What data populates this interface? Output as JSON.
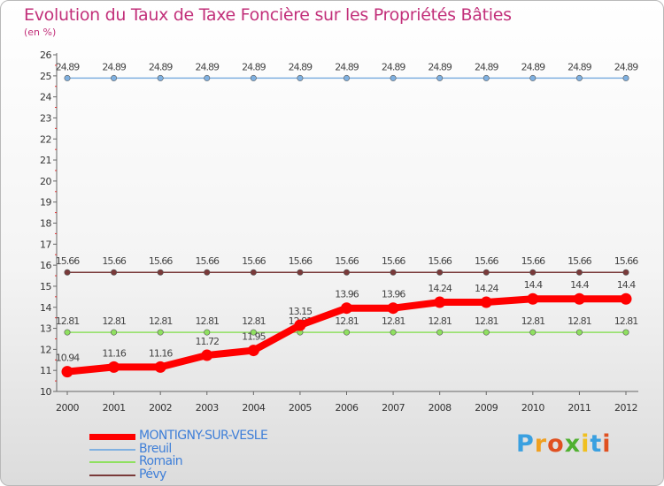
{
  "chart_data": {
    "type": "line",
    "title": "Evolution du Taux de Taxe Foncière sur les Propriétés Bâties",
    "subtitle": "(en %)",
    "xlabel": "",
    "ylabel": "",
    "ylim": [
      10,
      26
    ],
    "yticks": [
      "10",
      "11",
      "12",
      "13",
      "14",
      "15",
      "16",
      "17",
      "18",
      "19",
      "20",
      "21",
      "22",
      "23",
      "24",
      "25",
      "26"
    ],
    "categories": [
      "2000",
      "2001",
      "2002",
      "2003",
      "2004",
      "2005",
      "2006",
      "2007",
      "2008",
      "2009",
      "2010",
      "2011",
      "2012"
    ],
    "grid": false,
    "legend_position": "bottom-left",
    "series": [
      {
        "name": "MONTIGNY-SUR-VESLE",
        "color": "#ff0000",
        "values": [
          10.94,
          11.16,
          11.16,
          11.72,
          11.95,
          13.15,
          13.96,
          13.96,
          14.24,
          14.24,
          14.4,
          14.4,
          14.4
        ],
        "labels": [
          "10.94",
          "11.16",
          "11.16",
          "11.72",
          "11.95",
          "13.15",
          "13.96",
          "13.96",
          "14.24",
          "14.24",
          "14.4",
          "14.4",
          "14.4"
        ]
      },
      {
        "name": "Breuil",
        "color": "#7fb0e0",
        "values": [
          24.89,
          24.89,
          24.89,
          24.89,
          24.89,
          24.89,
          24.89,
          24.89,
          24.89,
          24.89,
          24.89,
          24.89,
          24.89
        ],
        "labels": [
          "24.89",
          "24.89",
          "24.89",
          "24.89",
          "24.89",
          "24.89",
          "24.89",
          "24.89",
          "24.89",
          "24.89",
          "24.89",
          "24.89",
          "24.89"
        ]
      },
      {
        "name": "Romain",
        "color": "#8fe060",
        "values": [
          12.81,
          12.81,
          12.81,
          12.81,
          12.81,
          12.81,
          12.81,
          12.81,
          12.81,
          12.81,
          12.81,
          12.81,
          12.81
        ],
        "labels": [
          "12.81",
          "12.81",
          "12.81",
          "12.81",
          "12.81",
          "12.81",
          "12.81",
          "12.81",
          "12.81",
          "12.81",
          "12.81",
          "12.81",
          "12.81"
        ]
      },
      {
        "name": "Pévy",
        "color": "#7a3a3a",
        "values": [
          15.66,
          15.66,
          15.66,
          15.66,
          15.66,
          15.66,
          15.66,
          15.66,
          15.66,
          15.66,
          15.66,
          15.66,
          15.66
        ],
        "labels": [
          "15.66",
          "15.66",
          "15.66",
          "15.66",
          "15.66",
          "15.66",
          "15.66",
          "15.66",
          "15.66",
          "15.66",
          "15.66",
          "15.66",
          "15.66"
        ]
      }
    ]
  },
  "brand": {
    "letters": [
      "P",
      "r",
      "o",
      "x",
      "i",
      "t",
      "i"
    ],
    "colors": [
      "#3aa0e0",
      "#f0a020",
      "#e05020",
      "#50b030",
      "#f0c020",
      "#3aa0e0",
      "#e05020"
    ]
  }
}
